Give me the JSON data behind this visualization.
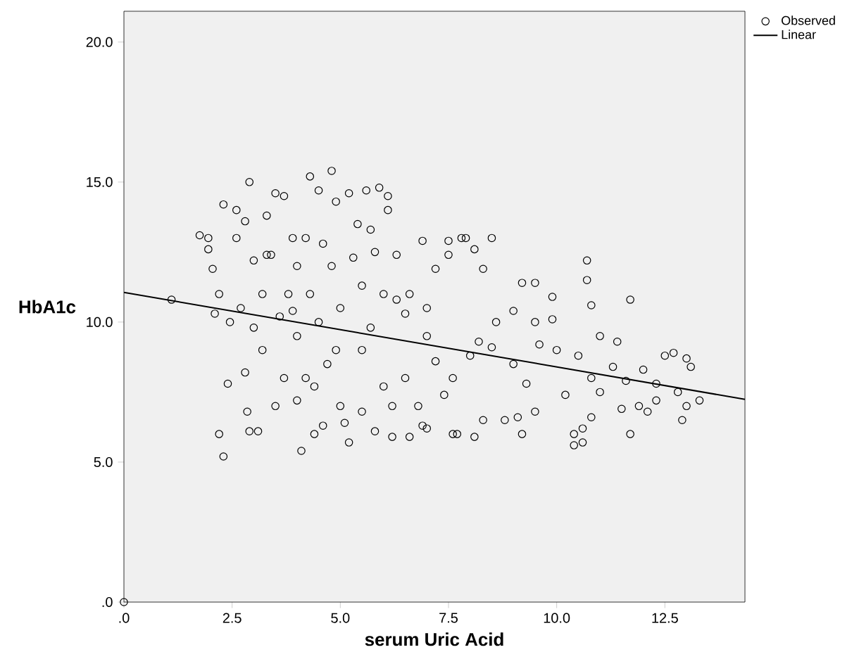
{
  "chart_data": {
    "type": "scatter",
    "xlabel": "serum Uric Acid",
    "ylabel": "HbA1c",
    "xlim": [
      0,
      14.35
    ],
    "ylim": [
      0,
      21.1
    ],
    "xticks": [
      {
        "value": 0,
        "label": ".0"
      },
      2.5,
      {
        "value": 5,
        "label": "5.0"
      },
      7.5,
      {
        "value": 10,
        "label": "10.0"
      },
      12.5
    ],
    "yticks": [
      {
        "value": 0,
        "label": ".0"
      },
      {
        "value": 5,
        "label": "5.0"
      },
      {
        "value": 10,
        "label": "10.0"
      },
      {
        "value": 15,
        "label": "15.0"
      },
      {
        "value": 20,
        "label": "20.0"
      }
    ],
    "legend": "top right",
    "series": [
      {
        "name": "Observed",
        "marker": "circle",
        "color": "#000000",
        "x": [
          0,
          1.1,
          1.75,
          1.95,
          1.95,
          2.05,
          2.1,
          2.2,
          2.2,
          2.3,
          2.3,
          2.4,
          2.45,
          2.6,
          2.6,
          2.8,
          2.8,
          2.85,
          2.9,
          2.9,
          3.1,
          3.0,
          3.2,
          3.3,
          3.5,
          3.7,
          3.4,
          3.2,
          3.5,
          3.7,
          3.9,
          4.0,
          4.1,
          4.2,
          4.3,
          4.3,
          4.4,
          4.5,
          4.6,
          4.8,
          4.8,
          4.9,
          5.0,
          5.2,
          5.2,
          5.4,
          5.6,
          5.7,
          5.9,
          6.1,
          6.1,
          5.8,
          6.2,
          6.3,
          6.5,
          6.6,
          6.9,
          7.0,
          7.0,
          7.2,
          7.5,
          7.5,
          7.7,
          7.8,
          7.9,
          8.1,
          8.3,
          8.5,
          8.1,
          8.3,
          8.6,
          8.8,
          9.0,
          9.1,
          9.2,
          9.2,
          9.5,
          9.5,
          9.5,
          9.9,
          9.9,
          10.4,
          10.4,
          10.6,
          10.7,
          10.7,
          10.6,
          10.8,
          10.8,
          11.0,
          11.4,
          11.5,
          11.7,
          11.7,
          11.9,
          12.1,
          12.5,
          12.7,
          12.9,
          13.0,
          13.1,
          13.3,
          13.0,
          12.3,
          12.0,
          11.3,
          11.0,
          10.5,
          10.0,
          9.6,
          9.0,
          8.5,
          8.0,
          7.6,
          7.4,
          7.0,
          6.8,
          6.5,
          6.0,
          6.0,
          5.5,
          5.5,
          5.0,
          4.7,
          4.5,
          4.2,
          4.0,
          3.8,
          3.6,
          3.3,
          3.0,
          2.7,
          4.6,
          5.3,
          5.8,
          6.3,
          6.6,
          4.0,
          4.4,
          5.1,
          5.5,
          6.2,
          7.2,
          8.2,
          9.3,
          10.2,
          10.8,
          11.6,
          12.3,
          12.8,
          4.9,
          5.7,
          3.9,
          6.9,
          7.6
        ],
        "values": [
          0,
          10.8,
          13.1,
          12.6,
          13.0,
          11.9,
          10.3,
          11.0,
          6.0,
          14.2,
          5.2,
          7.8,
          10.0,
          13.0,
          14.0,
          8.2,
          13.6,
          6.8,
          15.0,
          6.1,
          6.1,
          12.2,
          11.0,
          13.8,
          14.6,
          14.5,
          12.4,
          9.0,
          7.0,
          8.0,
          13.0,
          12.0,
          5.4,
          13.0,
          15.2,
          11.0,
          6.0,
          14.7,
          6.3,
          15.4,
          12.0,
          14.3,
          10.5,
          14.6,
          5.7,
          13.5,
          14.7,
          13.3,
          14.8,
          14.5,
          14.0,
          6.1,
          5.9,
          12.4,
          8.0,
          5.9,
          12.9,
          10.5,
          6.2,
          11.9,
          12.9,
          12.4,
          6.0,
          13.0,
          13.0,
          12.6,
          11.9,
          13.0,
          5.9,
          6.5,
          10.0,
          6.5,
          10.4,
          6.6,
          11.4,
          6.0,
          11.4,
          6.8,
          10.0,
          10.1,
          10.9,
          6.0,
          5.6,
          5.7,
          12.2,
          11.5,
          6.2,
          6.6,
          10.6,
          9.5,
          9.3,
          6.9,
          10.8,
          6.0,
          7.0,
          6.8,
          8.8,
          8.9,
          6.5,
          8.7,
          8.4,
          7.2,
          7.0,
          7.8,
          8.3,
          8.4,
          7.5,
          8.8,
          9.0,
          9.2,
          8.5,
          9.1,
          8.8,
          8.0,
          7.4,
          9.5,
          7.0,
          10.3,
          11.0,
          7.7,
          9.0,
          11.3,
          7.0,
          8.5,
          10.0,
          8.0,
          9.5,
          11.0,
          10.2,
          12.4,
          9.8,
          10.5,
          12.8,
          12.3,
          12.5,
          10.8,
          11.0,
          7.2,
          7.7,
          6.4,
          6.8,
          7.0,
          8.6,
          9.3,
          7.8,
          7.4,
          8.0,
          7.9,
          7.2,
          7.5,
          9.0,
          9.8,
          10.4,
          6.3,
          6.0
        ]
      },
      {
        "name": "Linear",
        "type": "line",
        "color": "#000000",
        "x": [
          0,
          14.35
        ],
        "values": [
          11.06,
          7.24
        ]
      }
    ]
  }
}
